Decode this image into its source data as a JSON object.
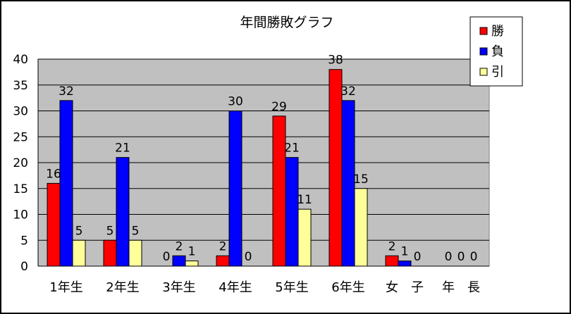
{
  "chart_data": {
    "type": "bar",
    "title": "年間勝敗グラフ",
    "xlabel": "",
    "ylabel": "",
    "categories": [
      "1年生",
      "2年生",
      "3年生",
      "4年生",
      "5年生",
      "6年生",
      "女　子",
      "年　長"
    ],
    "series": [
      {
        "name": "勝",
        "color": "#ff0000",
        "values": [
          16,
          5,
          0,
          2,
          29,
          38,
          2,
          0
        ]
      },
      {
        "name": "負",
        "color": "#0000ff",
        "values": [
          32,
          21,
          2,
          30,
          21,
          32,
          1,
          0
        ]
      },
      {
        "name": "引",
        "color": "#ffff99",
        "values": [
          5,
          5,
          1,
          0,
          11,
          15,
          0,
          0
        ]
      }
    ],
    "ylim": [
      0,
      40
    ],
    "yticks": [
      0,
      5,
      10,
      15,
      20,
      25,
      30,
      35,
      40
    ],
    "grid": true,
    "plot_background": "#c0c0c0",
    "legend_position": "top-right",
    "data_labels": true
  }
}
